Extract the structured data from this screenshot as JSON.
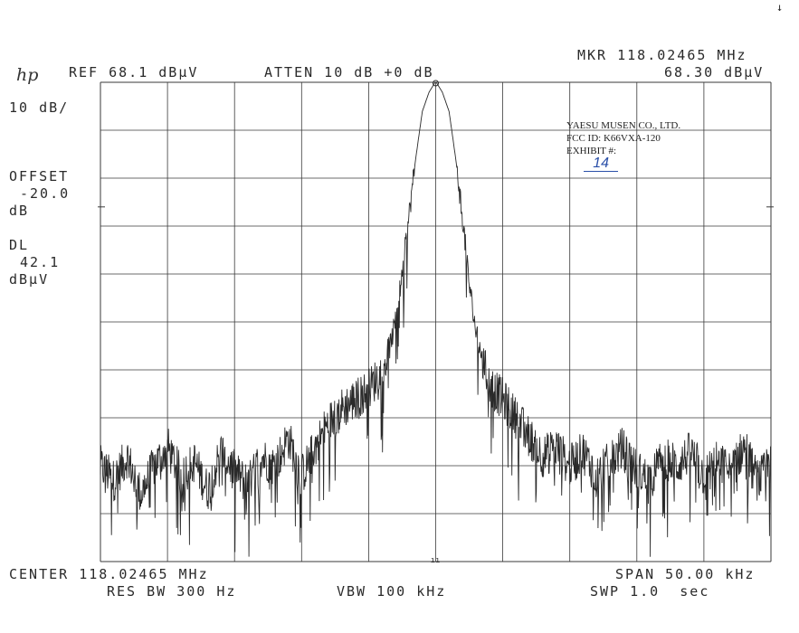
{
  "header": {
    "ref": "REF 68.1 dBµV",
    "atten": "ATTEN 10 dB +0 dB",
    "marker_freq": "MKR 118.02465 MHz",
    "marker_level": "68.30 dBµV",
    "logo": "hp"
  },
  "left_panel": {
    "scale": "10 dB/",
    "offset_label": "OFFSET",
    "offset_value": "-20.0",
    "offset_unit": "dB",
    "dl_label": "DL",
    "dl_value": "42.1",
    "dl_unit": "dBµV"
  },
  "footer": {
    "center": "CENTER 118.02465 MHz",
    "span": "SPAN 50.00 kHz",
    "res_bw": "RES BW 300 Hz",
    "vbw": "VBW 100 kHz",
    "swp": "SWP 1.0  sec"
  },
  "stamp": {
    "company": "YAESU MUSEN CO., LTD.",
    "fcc_id": "FCC ID: K66VXA-120",
    "exhibit_label": "EXHIBIT #:",
    "exhibit_number": "14"
  },
  "corner_mark": "↓",
  "colors": {
    "trace": "#2a2a2a",
    "grid": "#3a3a3a",
    "stamp_ink": "#2a4fa8"
  },
  "chart_data": {
    "type": "line",
    "ylim": [
      -31.9,
      68.1
    ],
    "xlim": [
      -25,
      25
    ],
    "grid": true,
    "display_line": 42.1,
    "marker": {
      "x": 0,
      "y": 68.3
    },
    "series": [
      {
        "x": [
          -25,
          -24,
          -23,
          -22,
          -21,
          -20,
          -19,
          -18,
          -17,
          -16,
          -15,
          -14,
          -13,
          -12,
          -11,
          -10,
          -9,
          -8,
          -7,
          -6,
          -5,
          -4,
          -3.5,
          -3,
          -2.5,
          -2,
          -1.5,
          -1,
          -0.5,
          0,
          0.5,
          1,
          1.5,
          2,
          2.5,
          3,
          3.5,
          4,
          5,
          6,
          7,
          8,
          9,
          10,
          11,
          12,
          13,
          14,
          15,
          16,
          17,
          18,
          19,
          20,
          21,
          22,
          23,
          24,
          25
        ],
        "values": [
          -12,
          -15,
          -10,
          -18,
          -12,
          -8,
          -14,
          -11,
          -17,
          -9,
          -13,
          -16,
          -10,
          -12,
          -6,
          -14,
          -8,
          -3,
          0,
          2,
          4,
          8,
          12,
          18,
          28,
          40,
          52,
          62,
          66,
          68.3,
          66,
          62,
          52,
          40,
          26,
          16,
          10,
          5,
          2,
          -2,
          -6,
          -10,
          -8,
          -12,
          -9,
          -14,
          -11,
          -8,
          -13,
          -15,
          -10,
          -12,
          -9,
          -14,
          -11,
          -13,
          -8,
          -15,
          -12
        ]
      }
    ]
  }
}
